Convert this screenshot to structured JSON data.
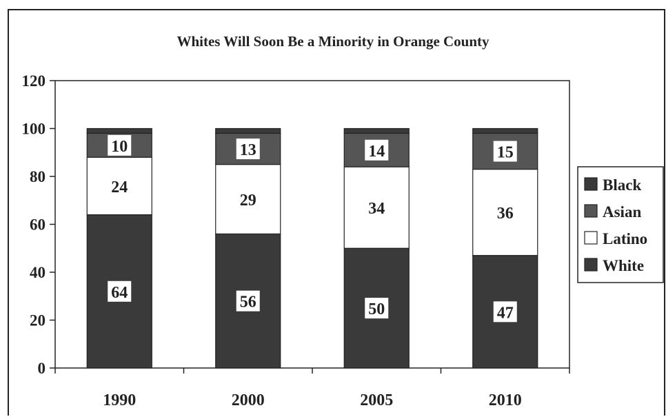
{
  "chart_data": {
    "type": "bar",
    "stacked": true,
    "title": "Whites Will Soon Be a Minority in Orange County",
    "xlabel": "",
    "ylabel": "",
    "categories": [
      "1990",
      "2000",
      "2005",
      "2010"
    ],
    "ylim": [
      0,
      120
    ],
    "yticks": [
      0,
      20,
      40,
      60,
      80,
      100,
      120
    ],
    "series": [
      {
        "name": "White",
        "values": [
          64,
          56,
          50,
          47
        ],
        "color": "#3a3a3a",
        "labels": [
          "64",
          "56",
          "50",
          "47"
        ]
      },
      {
        "name": "Latino",
        "values": [
          24,
          29,
          34,
          36
        ],
        "color": "#ffffff",
        "labels": [
          "24",
          "29",
          "34",
          "36"
        ]
      },
      {
        "name": "Asian",
        "values": [
          10,
          13,
          14,
          15
        ],
        "color": "#555555",
        "labels": [
          "10",
          "13",
          "14",
          "15"
        ]
      },
      {
        "name": "Black",
        "values": [
          2,
          2,
          2,
          2
        ],
        "color": "#3a3a3a",
        "labels": [
          "",
          "",
          "",
          ""
        ]
      }
    ],
    "legend": {
      "position": "right",
      "entries": [
        "Black",
        "Asian",
        "Latino",
        "White"
      ]
    },
    "grid": false
  }
}
